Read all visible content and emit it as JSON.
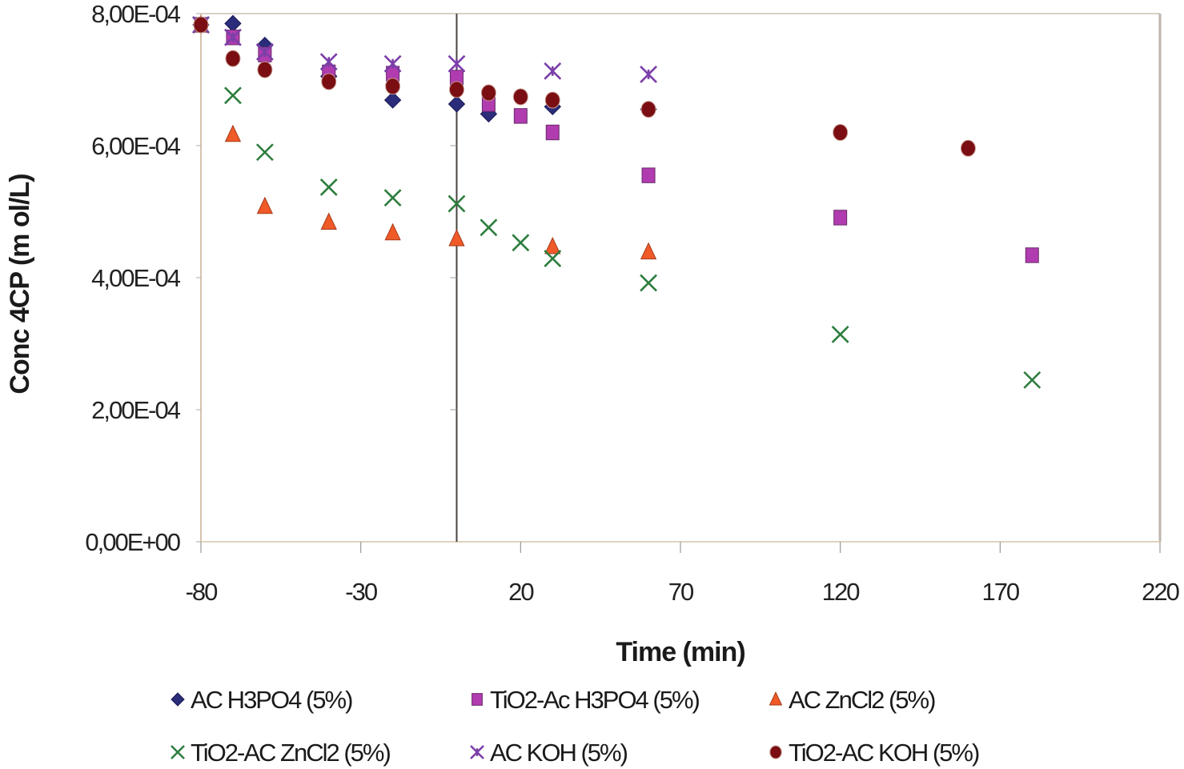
{
  "chart_data": {
    "type": "scatter",
    "title": "",
    "xlabel": "Time (min)",
    "ylabel": "Conc 4CP (m ol/L)",
    "xlim": [
      -80,
      220
    ],
    "ylim": [
      0,
      0.0008
    ],
    "x_ticks": [
      -80,
      -30,
      20,
      70,
      120,
      170,
      220
    ],
    "x_tick_labels": [
      "-80",
      "-30",
      "20",
      "70",
      "120",
      "170",
      "220"
    ],
    "y_ticks": [
      0,
      0.0002,
      0.0004,
      0.0006,
      0.0008
    ],
    "y_tick_labels": [
      "0,00E+00",
      "2,00E-04",
      "4,00E-04",
      "6,00E-04",
      "8,00E-04"
    ],
    "grid": false,
    "reference_line_x": 0,
    "legend_position": "bottom",
    "series": [
      {
        "name": "AC H3PO4 (5%)",
        "marker": "diamond",
        "color": "#2b2d7a",
        "x": [
          -80,
          -70,
          -60,
          -40,
          -20,
          0,
          10,
          30,
          60
        ],
        "y": [
          0.000783,
          0.000785,
          0.000752,
          0.000705,
          0.000669,
          0.000663,
          0.000648,
          0.000659,
          0.000655
        ]
      },
      {
        "name": "TiO2-Ac H3PO4 (5%)",
        "marker": "square",
        "color": "#b03cb0",
        "x": [
          -80,
          -70,
          -60,
          -40,
          -20,
          0,
          10,
          20,
          30,
          60,
          120,
          180
        ],
        "y": [
          0.000783,
          0.000764,
          0.000738,
          0.000711,
          0.000709,
          0.000703,
          0.000663,
          0.000645,
          0.00062,
          0.000555,
          0.000491,
          0.000434
        ]
      },
      {
        "name": "AC ZnCl2 (5%)",
        "marker": "triangle",
        "color": "#f05a28",
        "x": [
          -80,
          -70,
          -60,
          -40,
          -20,
          0,
          30,
          60
        ],
        "y": [
          0.000783,
          0.000617,
          0.000508,
          0.000484,
          0.000468,
          0.000459,
          0.000447,
          0.000439
        ]
      },
      {
        "name": "TiO2-AC ZnCl2 (5%)",
        "marker": "x",
        "color": "#2e7d3e",
        "x": [
          -80,
          -70,
          -60,
          -40,
          -20,
          0,
          10,
          20,
          30,
          60,
          120,
          180
        ],
        "y": [
          0.000783,
          0.000676,
          0.00059,
          0.000537,
          0.000521,
          0.000512,
          0.000476,
          0.000453,
          0.000429,
          0.000392,
          0.000314,
          0.000245
        ]
      },
      {
        "name": "AC KOH (5%)",
        "marker": "asterisk",
        "color": "#7b3fa8",
        "x": [
          -80,
          -70,
          -60,
          -40,
          -20,
          0,
          30,
          60
        ],
        "y": [
          0.000783,
          0.000764,
          0.000742,
          0.000727,
          0.000724,
          0.000724,
          0.000713,
          0.000708
        ]
      },
      {
        "name": "TiO2-AC KOH (5%)",
        "marker": "circle",
        "color": "#7a0e12",
        "x": [
          -80,
          -70,
          -60,
          -40,
          -20,
          0,
          10,
          20,
          30,
          60,
          120,
          160
        ],
        "y": [
          0.000783,
          0.000732,
          0.000715,
          0.000697,
          0.00069,
          0.000685,
          0.00068,
          0.000674,
          0.000669,
          0.000655,
          0.00062,
          0.000596
        ]
      }
    ]
  }
}
